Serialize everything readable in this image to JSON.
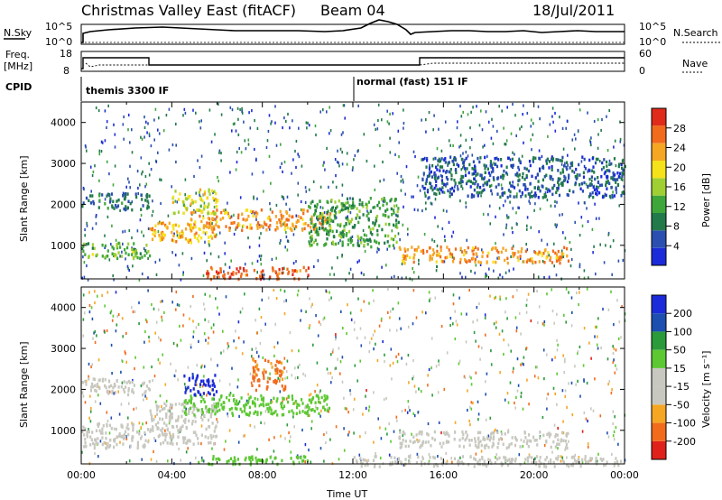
{
  "header": {
    "title": "Christmas Valley East (fitACF)",
    "beam": "Beam 04",
    "date": "18/Jul/2011"
  },
  "top_panels": {
    "nsky_label": "N.Sky",
    "nsearch_label": "N.Search",
    "freq_label_1": "Freq.",
    "freq_label_2": "[MHz]",
    "nave_label": "Nave",
    "cpid_label": "CPID",
    "noise_ticks_left": [
      "10^5",
      "10^0"
    ],
    "noise_ticks_right": [
      "10^5",
      "10^0"
    ],
    "freq_ticks": [
      "18",
      "8"
    ],
    "nave_ticks": [
      "60",
      "0"
    ]
  },
  "cpid": {
    "segments": [
      {
        "label": "themis 3300 IF",
        "start_hour": 0
      },
      {
        "label": "normal (fast) 151 IF",
        "start_hour": 12
      }
    ]
  },
  "colors": {
    "power": [
      "#1c2bd9",
      "#2a4fb0",
      "#227a4a",
      "#3fa63a",
      "#9fcf33",
      "#f5e21a",
      "#f5a623",
      "#f26b1d",
      "#e02b1b"
    ],
    "velocity": [
      "#e0211b",
      "#f26b1d",
      "#f5a623",
      "#c8c8c0",
      "#c8c8c0",
      "#5cc832",
      "#2a9a3a",
      "#1c4fb0",
      "#1c2bd9"
    ]
  },
  "chart_data": [
    {
      "type": "heatmap",
      "name_shown": "",
      "ylabel": "Slant Range [km]",
      "colorbar_label": "Power [dB]",
      "colorbar_ticks": [
        "28",
        "24",
        "20",
        "16",
        "12",
        "8",
        "4"
      ],
      "colorbar_range": [
        0,
        32
      ],
      "yticks": [
        "4000",
        "3000",
        "2000",
        "1000"
      ],
      "ylim": [
        180,
        4500
      ],
      "xlim": [
        0,
        24
      ],
      "features": [
        {
          "t": [
            0.0,
            3.0
          ],
          "range": [
            1900,
            2300
          ],
          "power": 8
        },
        {
          "t": [
            0.0,
            3.0
          ],
          "range": [
            700,
            1100
          ],
          "power": 14
        },
        {
          "t": [
            3.0,
            6.0
          ],
          "range": [
            1100,
            1600
          ],
          "power": 22
        },
        {
          "t": [
            4.5,
            11.0
          ],
          "range": [
            1400,
            1900
          ],
          "power": 24
        },
        {
          "t": [
            4.0,
            6.0
          ],
          "range": [
            1800,
            2400
          ],
          "power": 18
        },
        {
          "t": [
            5.5,
            10.0
          ],
          "range": [
            200,
            500
          ],
          "power": 28
        },
        {
          "t": [
            14.0,
            21.5
          ],
          "range": [
            600,
            1000
          ],
          "power": 24
        },
        {
          "t": [
            15.0,
            24.0
          ],
          "range": [
            2200,
            3200
          ],
          "power": 6
        },
        {
          "t": [
            10.0,
            14.0
          ],
          "range": [
            1000,
            2200
          ],
          "power": 12
        }
      ]
    },
    {
      "type": "heatmap",
      "name_shown": "",
      "ylabel": "Slant Range [km]",
      "colorbar_label": "Velocity [m s⁻¹]",
      "colorbar_ticks": [
        "200",
        "100",
        "50",
        "15",
        "-15",
        "-50",
        "-100",
        "-200"
      ],
      "colorbar_range": [
        -250,
        250
      ],
      "yticks": [
        "4000",
        "3000",
        "2000",
        "1000"
      ],
      "ylim": [
        180,
        4500
      ],
      "xlim": [
        0,
        24
      ],
      "xticks": [
        "00:00",
        "04:00",
        "08:00",
        "12:00",
        "16:00",
        "20:00",
        "00:00"
      ],
      "xlabel": "Time UT",
      "features": [
        {
          "t": [
            0.0,
            3.0
          ],
          "range": [
            1900,
            2300
          ],
          "velocity": 0
        },
        {
          "t": [
            0.0,
            3.0
          ],
          "range": [
            600,
            1200
          ],
          "velocity": 0
        },
        {
          "t": [
            3.0,
            6.0
          ],
          "range": [
            700,
            1700
          ],
          "velocity": 0
        },
        {
          "t": [
            4.5,
            11.0
          ],
          "range": [
            1400,
            1900
          ],
          "velocity": 60
        },
        {
          "t": [
            4.5,
            6.0
          ],
          "range": [
            1900,
            2400
          ],
          "velocity": 220
        },
        {
          "t": [
            7.5,
            9.0
          ],
          "range": [
            2000,
            2800
          ],
          "velocity": -150
        },
        {
          "t": [
            5.0,
            10.0
          ],
          "range": [
            200,
            400
          ],
          "velocity": 60
        },
        {
          "t": [
            14.0,
            21.5
          ],
          "range": [
            600,
            1000
          ],
          "velocity": 0
        },
        {
          "t": [
            12.0,
            24.0
          ],
          "range": [
            150,
            400
          ],
          "velocity": -60
        }
      ]
    }
  ]
}
